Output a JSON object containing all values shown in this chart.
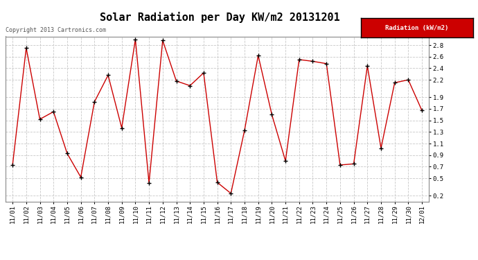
{
  "title": "Solar Radiation per Day KW/m2 20131201",
  "copyright": "Copyright 2013 Cartronics.com",
  "legend_label": "Radiation (kW/m2)",
  "dates": [
    "11/01",
    "11/02",
    "11/03",
    "11/04",
    "11/05",
    "11/06",
    "11/07",
    "11/08",
    "11/09",
    "11/10",
    "11/11",
    "11/12",
    "11/13",
    "11/14",
    "11/15",
    "11/16",
    "11/17",
    "11/18",
    "11/19",
    "11/20",
    "11/21",
    "11/22",
    "11/23",
    "11/24",
    "11/25",
    "11/26",
    "11/27",
    "11/28",
    "11/29",
    "11/30",
    "12/01"
  ],
  "values": [
    0.73,
    2.75,
    1.52,
    1.65,
    0.93,
    0.52,
    1.82,
    2.28,
    1.37,
    2.9,
    0.42,
    2.88,
    2.18,
    2.1,
    2.32,
    0.43,
    0.24,
    1.33,
    2.62,
    1.6,
    0.8,
    2.55,
    2.52,
    2.48,
    0.73,
    0.75,
    2.44,
    1.02,
    2.15,
    2.2,
    1.67
  ],
  "line_color": "#cc0000",
  "marker_color": "#000000",
  "background_color": "#ffffff",
  "plot_bg_color": "#ffffff",
  "grid_color": "#c8c8c8",
  "ylim_min": 0.1,
  "ylim_max": 2.95,
  "yticks": [
    0.2,
    0.5,
    0.7,
    0.9,
    1.1,
    1.3,
    1.5,
    1.7,
    1.9,
    2.2,
    2.4,
    2.6,
    2.8
  ],
  "legend_bg": "#cc0000",
  "legend_text_color": "#ffffff",
  "title_fontsize": 11,
  "tick_fontsize": 6.5,
  "copyright_fontsize": 6,
  "border_color": "#888888"
}
